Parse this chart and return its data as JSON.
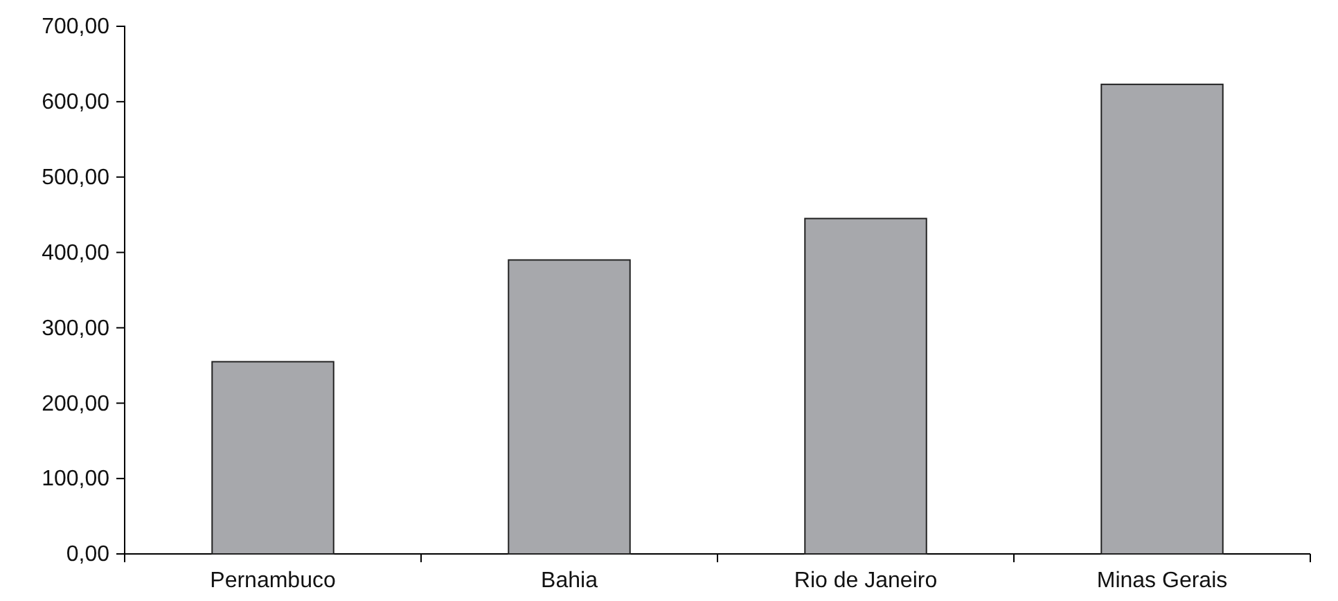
{
  "chart_data": {
    "type": "bar",
    "categories": [
      "Pernambuco",
      "Bahia",
      "Rio de Janeiro",
      "Minas Gerais"
    ],
    "values": [
      255,
      390,
      445,
      623
    ],
    "color": "#a7a8ac",
    "ylim": [
      0,
      700
    ],
    "yticks": [
      {
        "value": 0,
        "label": "0,00"
      },
      {
        "value": 100,
        "label": "100,00"
      },
      {
        "value": 200,
        "label": "200,00"
      },
      {
        "value": 300,
        "label": "300,00"
      },
      {
        "value": 400,
        "label": "400,00"
      },
      {
        "value": 500,
        "label": "500,00"
      },
      {
        "value": 600,
        "label": "600,00"
      },
      {
        "value": 700,
        "label": "700,00"
      }
    ],
    "grid": false
  }
}
